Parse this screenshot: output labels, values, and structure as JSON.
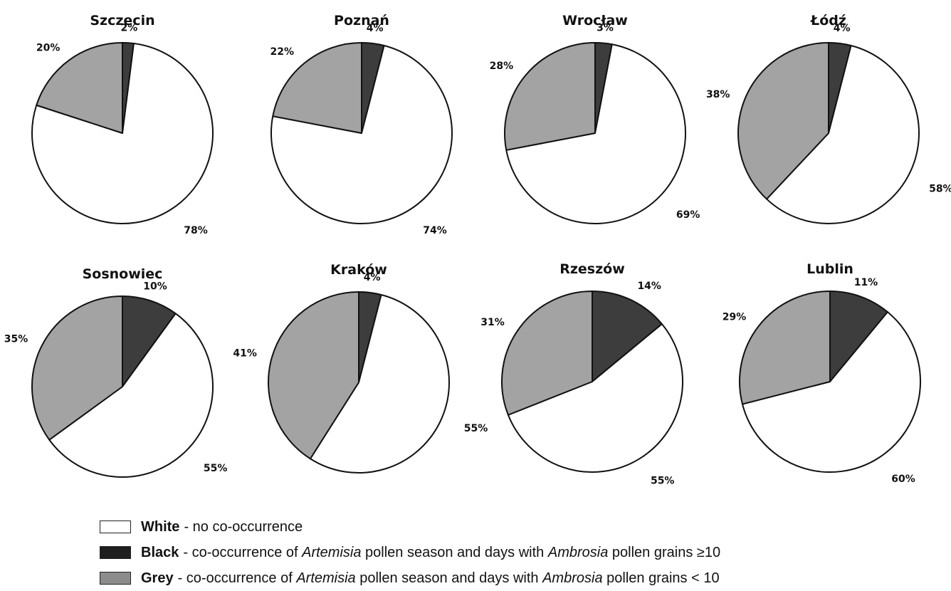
{
  "chart_data": {
    "type": "pie",
    "categories": [
      "White",
      "Black",
      "Grey"
    ],
    "colors": {
      "White": "#ffffff",
      "Black": "#3d3d3d",
      "Grey": "#a3a3a3",
      "outline": "#111111"
    },
    "charts": [
      {
        "title": "Szczecin",
        "values": [
          78,
          2,
          20
        ],
        "labels": [
          "78%",
          "2%",
          "20%"
        ]
      },
      {
        "title": "Poznań",
        "values": [
          74,
          4,
          22
        ],
        "labels": [
          "74%",
          "4%",
          "22%"
        ]
      },
      {
        "title": "Wrocław",
        "values": [
          69,
          3,
          28
        ],
        "labels": [
          "69%",
          "3%",
          "28%"
        ]
      },
      {
        "title": "Łódź",
        "values": [
          58,
          4,
          38
        ],
        "labels": [
          "58%",
          "4%",
          "38%"
        ]
      },
      {
        "title": "Sosnowiec",
        "values": [
          55,
          10,
          35
        ],
        "labels": [
          "55%",
          "10%",
          "35%"
        ]
      },
      {
        "title": "Kraków",
        "values": [
          55,
          4,
          41
        ],
        "labels": [
          "55%",
          "4%",
          "41%"
        ]
      },
      {
        "title": "Rzeszów",
        "values": [
          55,
          14,
          31
        ],
        "labels": [
          "55%",
          "14%",
          "31%"
        ]
      },
      {
        "title": "Lublin",
        "values": [
          60,
          11,
          29
        ],
        "labels": [
          "60%",
          "11%",
          "29%"
        ]
      }
    ]
  },
  "legend": [
    {
      "name": "White",
      "swatch": "#ffffff",
      "text_before": "- no co-occurrence",
      "italic1": "",
      "text_mid": "",
      "italic2": "",
      "text_after": ""
    },
    {
      "name": "Black",
      "swatch": "#1e1e1e",
      "text_before": "- co-occurrence of ",
      "italic1": "Artemisia",
      "text_mid": " pollen season and days with ",
      "italic2": "Ambrosia",
      "text_after": " pollen grains ≥10"
    },
    {
      "name": "Grey",
      "swatch": "#8c8c8c",
      "text_before": " - co-occurrence of ",
      "italic1": "Artemisia",
      "text_mid": " pollen season and days with ",
      "italic2": "Ambrosia",
      "text_after": " pollen grains < 10"
    }
  ]
}
